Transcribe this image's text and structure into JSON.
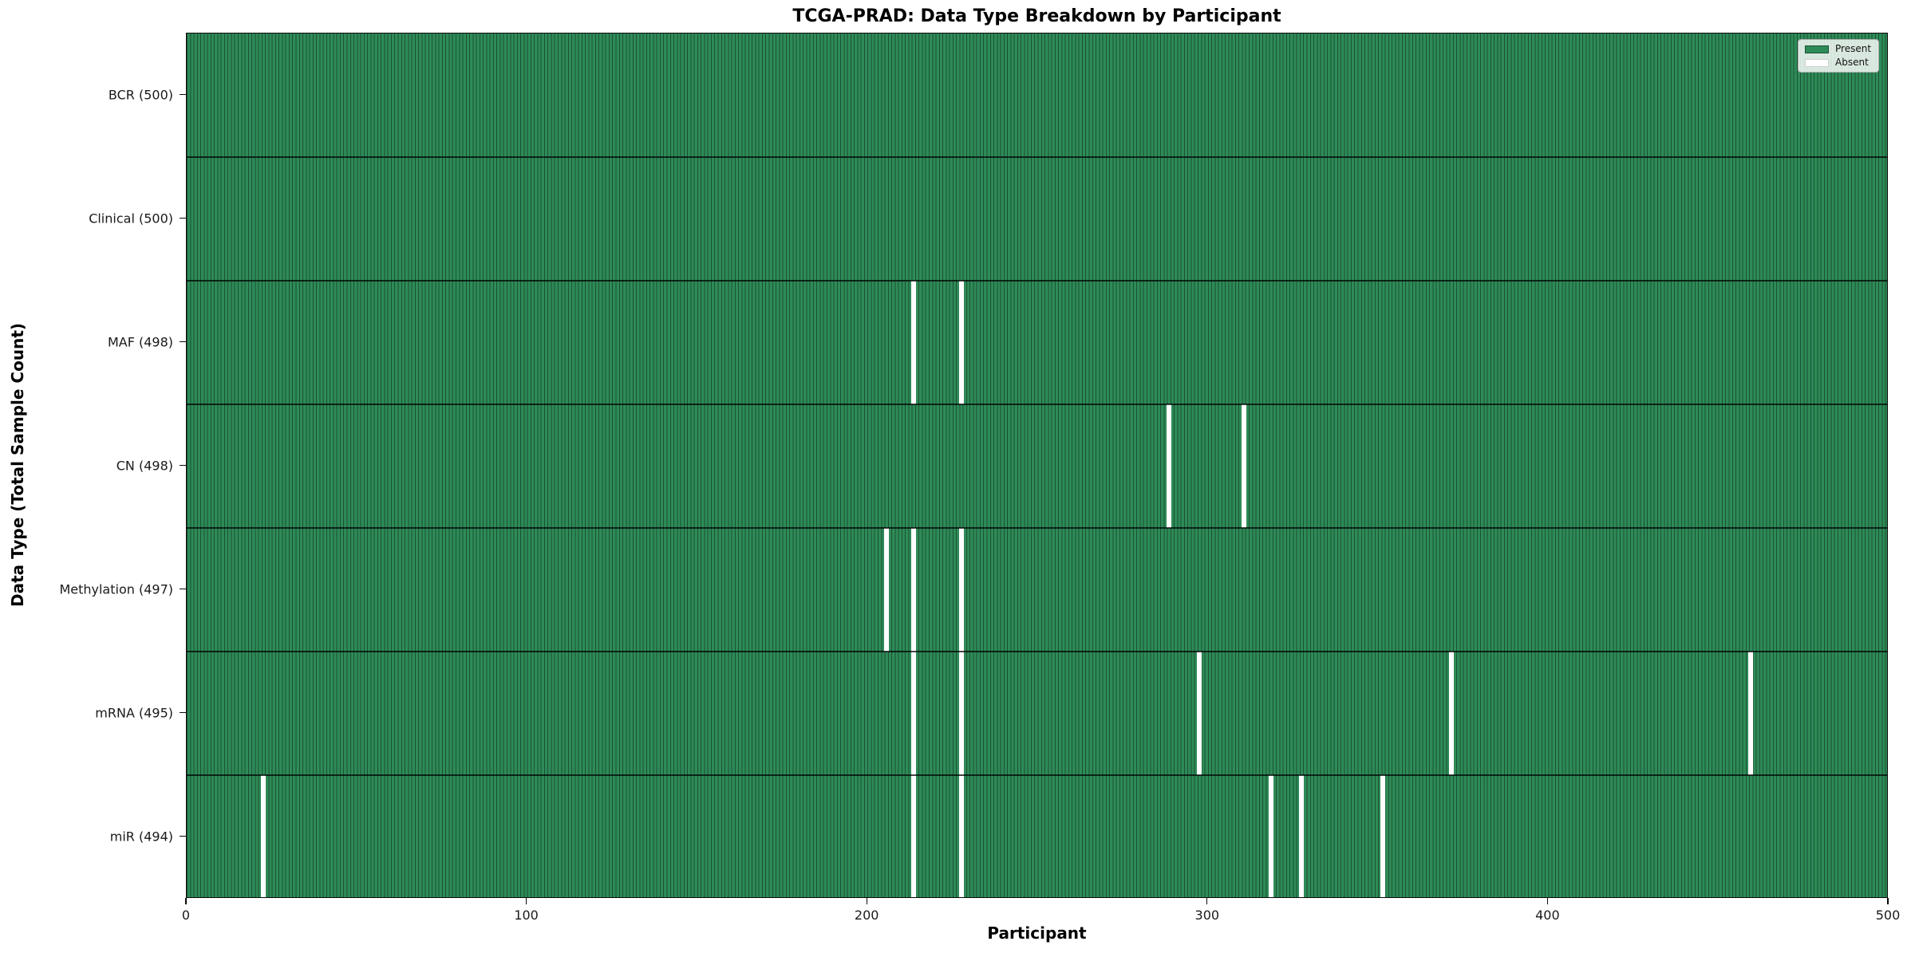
{
  "title": "TCGA-PRAD: Data Type Breakdown by Participant",
  "xlabel": "Participant",
  "ylabel": "Data Type (Total Sample Count)",
  "legend": {
    "position": "upper right",
    "present_label": "Present",
    "absent_label": "Absent"
  },
  "colors": {
    "present_fill": "#2e8b57",
    "bar_edge": "#1b5236",
    "absent_fill": "#ffffff",
    "row_separator": "rgba(0,0,0,0.72)"
  },
  "chart_data": {
    "type": "heatmap",
    "title": "TCGA-PRAD: Data Type Breakdown by Participant",
    "xlabel": "Participant",
    "ylabel": "Data Type (Total Sample Count)",
    "x_range": [
      0,
      500
    ],
    "x_ticks": [
      0,
      100,
      200,
      300,
      400,
      500
    ],
    "grid": false,
    "legend_entries": [
      "Present",
      "Absent"
    ],
    "n_participants": 500,
    "rows": [
      {
        "name": "BCR",
        "label": "BCR (500)",
        "total": 500,
        "absent_participants": []
      },
      {
        "name": "Clinical",
        "label": "Clinical (500)",
        "total": 500,
        "absent_participants": []
      },
      {
        "name": "MAF",
        "label": "MAF (498)",
        "total": 498,
        "absent_participants": [
          213,
          227
        ]
      },
      {
        "name": "CN",
        "label": "CN (498)",
        "total": 498,
        "absent_participants": [
          288,
          310
        ]
      },
      {
        "name": "Methylation",
        "label": "Methylation (497)",
        "total": 497,
        "absent_participants": [
          205,
          213,
          227
        ]
      },
      {
        "name": "mRNA",
        "label": "mRNA (495)",
        "total": 495,
        "absent_participants": [
          213,
          227,
          297,
          371,
          459
        ]
      },
      {
        "name": "miR",
        "label": "miR (494)",
        "total": 494,
        "absent_participants": [
          22,
          213,
          227,
          318,
          327,
          351
        ]
      }
    ]
  }
}
